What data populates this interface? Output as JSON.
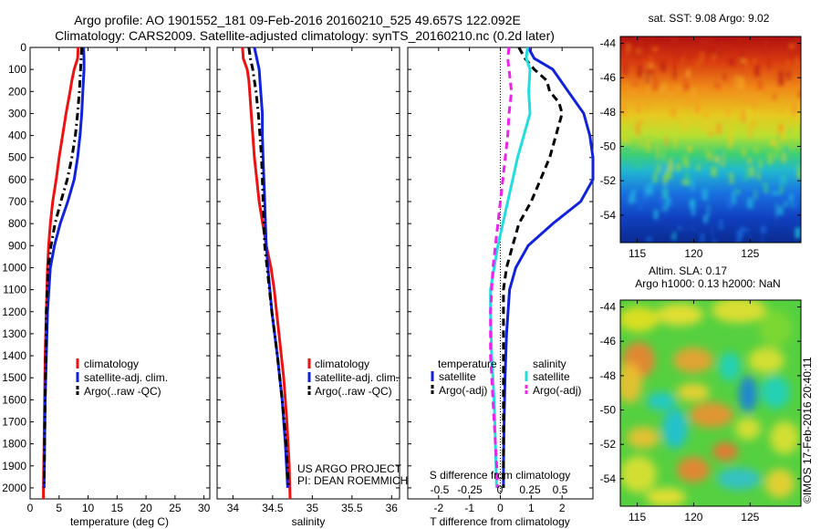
{
  "header": {
    "title_line1": "Argo profile: AO 1901552_181 09-Feb-2016 20160210_525 49.657S 122.092E",
    "title_line2": "Climatology: CARS2009. Satellite-adjusted climatology: synTS_20160210.nc (0.2d later)"
  },
  "y_ticks": [
    0,
    100,
    200,
    300,
    400,
    500,
    600,
    700,
    800,
    900,
    1000,
    1100,
    1200,
    1300,
    1400,
    1500,
    1600,
    1700,
    1800,
    1900,
    2000
  ],
  "colors": {
    "climatology": "#ee1111",
    "satellite": "#1122dd",
    "argo": "#000000",
    "s_satellite": "#22dddd",
    "s_argo": "#ee22ee"
  },
  "chart_data": [
    {
      "id": "temperature",
      "type": "line",
      "xlabel": "temperature (deg C)",
      "xlim": [
        0,
        31
      ],
      "ylim": [
        2050,
        0
      ],
      "xticks": [
        0,
        5,
        10,
        15,
        20,
        25,
        30
      ],
      "legend": {
        "placement": "bottom-left",
        "entries": [
          "climatology",
          "satellite-adj. clim.",
          "Argo(..raw -QC)"
        ]
      },
      "series": [
        {
          "name": "climatology",
          "color": "#ee1111",
          "style": "solid",
          "depth": [
            0,
            50,
            100,
            150,
            200,
            300,
            400,
            500,
            600,
            700,
            800,
            900,
            1000,
            1200,
            1400,
            1600,
            1800,
            2000,
            2050
          ],
          "values": [
            8.3,
            8.2,
            7.6,
            7.2,
            6.9,
            6.2,
            5.6,
            5.0,
            4.5,
            3.9,
            3.5,
            3.2,
            3.0,
            2.8,
            2.6,
            2.5,
            2.4,
            2.3,
            2.3
          ]
        },
        {
          "name": "satellite-adj. clim.",
          "color": "#1122dd",
          "style": "solid",
          "depth": [
            0,
            50,
            100,
            200,
            300,
            400,
            500,
            600,
            700,
            800,
            900,
            1000,
            1200,
            1400,
            1600,
            1800,
            2000
          ],
          "values": [
            9.2,
            9.3,
            9.3,
            9.1,
            8.9,
            8.6,
            8.2,
            7.6,
            6.5,
            5.2,
            4.2,
            3.5,
            3.0,
            2.8,
            2.6,
            2.5,
            2.4
          ]
        },
        {
          "name": "Argo(..raw -QC)",
          "color": "#000000",
          "style": "dashdot",
          "depth": [
            0,
            50,
            100,
            200,
            300,
            400,
            500,
            600,
            700,
            800,
            900,
            1000,
            1200,
            1400,
            1600,
            1800,
            2000
          ],
          "values": [
            8.9,
            8.8,
            8.7,
            8.5,
            8.2,
            7.8,
            7.2,
            6.4,
            5.3,
            4.3,
            3.6,
            3.1,
            2.8,
            2.7,
            2.6,
            2.5,
            2.4
          ]
        }
      ]
    },
    {
      "id": "salinity",
      "type": "line",
      "xlabel": "salinity",
      "xlim": [
        33.8,
        36.1
      ],
      "ylim": [
        2050,
        0
      ],
      "xticks": [
        34,
        34.5,
        35,
        35.5,
        36
      ],
      "legend": {
        "placement": "bottom-right",
        "entries": [
          "climatology",
          "satellite-adj. clim.",
          "Argo(..raw -QC)"
        ]
      },
      "series": [
        {
          "name": "climatology",
          "color": "#ee1111",
          "style": "solid",
          "depth": [
            0,
            50,
            100,
            150,
            200,
            300,
            500,
            700,
            900,
            1000,
            1100,
            1300,
            1500,
            1700,
            1900,
            2050
          ],
          "values": [
            34.12,
            34.13,
            34.18,
            34.2,
            34.21,
            34.23,
            34.27,
            34.33,
            34.42,
            34.48,
            34.52,
            34.58,
            34.64,
            34.68,
            34.71,
            34.72
          ]
        },
        {
          "name": "satellite-adj. clim.",
          "color": "#1122dd",
          "style": "solid",
          "depth": [
            0,
            50,
            100,
            200,
            300,
            400,
            500,
            600,
            700,
            800,
            900,
            1000,
            1200,
            1400,
            1600,
            1800,
            2000
          ],
          "values": [
            34.27,
            34.3,
            34.33,
            34.35,
            34.37,
            34.37,
            34.38,
            34.39,
            34.4,
            34.41,
            34.42,
            34.44,
            34.49,
            34.56,
            34.62,
            34.66,
            34.69
          ]
        },
        {
          "name": "Argo(..raw -QC)",
          "color": "#000000",
          "style": "dashdot",
          "depth": [
            0,
            50,
            100,
            200,
            300,
            400,
            500,
            600,
            700,
            800,
            900,
            1000,
            1200,
            1400,
            1600,
            1800,
            2000
          ],
          "values": [
            34.2,
            34.22,
            34.25,
            34.29,
            34.32,
            34.34,
            34.36,
            34.37,
            34.38,
            34.39,
            34.4,
            34.43,
            34.49,
            34.56,
            34.62,
            34.67,
            34.7
          ]
        }
      ],
      "annotations": [
        "US ARGO PROJECT",
        "PI: DEAN ROEMMICH"
      ]
    },
    {
      "id": "differences",
      "type": "line",
      "xlabel": "T difference from climatology",
      "xlabel_top": "S difference from climatology",
      "xlim": [
        -3.0,
        3.0
      ],
      "ylim": [
        2050,
        0
      ],
      "xticks": [
        -2,
        -1,
        0,
        1,
        2
      ],
      "s_ticks": [
        "-0.5",
        "-0.25",
        "0",
        "0.25",
        "0.5"
      ],
      "zero_line": "dotted",
      "legend": {
        "placement": "bottom",
        "headers": [
          "temperature",
          "salinity"
        ],
        "entries": [
          "satellite",
          "Argo(-adj)",
          "satellite",
          "Argo(-adj)"
        ]
      },
      "series": [
        {
          "name": "satellite",
          "group": "temperature",
          "color": "#1122dd",
          "style": "solid",
          "depth": [
            0,
            50,
            100,
            200,
            300,
            400,
            500,
            600,
            700,
            800,
            900,
            1000,
            1100,
            1300,
            1500,
            1700,
            1900,
            2000
          ],
          "values": [
            0.9,
            1.1,
            1.7,
            2.2,
            2.7,
            2.9,
            3.0,
            3.0,
            2.6,
            1.7,
            0.9,
            0.5,
            0.3,
            0.2,
            0.15,
            0.12,
            0.1,
            0.1
          ]
        },
        {
          "name": "Argo(-adj)",
          "group": "temperature",
          "color": "#000000",
          "style": "dashed",
          "depth": [
            0,
            50,
            100,
            150,
            200,
            250,
            300,
            400,
            500,
            600,
            700,
            800,
            900,
            1000,
            1100,
            1300,
            1500,
            1700,
            1900,
            2000
          ],
          "values": [
            0.6,
            0.8,
            1.1,
            1.5,
            1.6,
            1.9,
            2.0,
            1.8,
            1.6,
            1.3,
            1.0,
            0.6,
            0.4,
            0.2,
            0.1,
            0.1,
            0.1,
            0.1,
            0.1,
            0.1
          ]
        },
        {
          "name": "satellite",
          "group": "salinity",
          "color": "#22dddd",
          "style": "solid",
          "depth": [
            0,
            50,
            100,
            200,
            300,
            400,
            500,
            600,
            700,
            800,
            900,
            1000,
            1100,
            1200,
            1400,
            1600,
            1800,
            2000
          ],
          "values": [
            0.22,
            0.21,
            0.24,
            0.23,
            0.24,
            0.19,
            0.14,
            0.1,
            0.06,
            0.02,
            -0.02,
            -0.05,
            -0.08,
            -0.08,
            -0.07,
            -0.05,
            -0.04,
            -0.03
          ]
        },
        {
          "name": "Argo(-adj)",
          "group": "salinity",
          "color": "#ee22ee",
          "style": "dashed",
          "depth": [
            0,
            50,
            100,
            200,
            300,
            400,
            500,
            600,
            700,
            800,
            900,
            1000,
            1100,
            1200,
            1400,
            1600,
            1800,
            2000
          ],
          "values": [
            0.07,
            0.06,
            0.07,
            0.09,
            0.07,
            0.06,
            0.04,
            0.02,
            0.0,
            -0.02,
            -0.04,
            -0.06,
            -0.07,
            -0.08,
            -0.08,
            -0.06,
            -0.04,
            -0.02
          ]
        }
      ]
    },
    {
      "id": "sst-map",
      "type": "heatmap",
      "title": "sat. SST: 9.08  Argo: 9.02",
      "xlim": [
        113.5,
        129.5
      ],
      "ylim": [
        -55.6,
        -43.6
      ],
      "xticks": [
        115,
        120,
        125
      ],
      "yticks": [
        -44,
        -46,
        -48,
        -50,
        -52,
        -54
      ]
    },
    {
      "id": "sla-map",
      "type": "heatmap",
      "title_line1": "Altim. SLA: 0.17",
      "title_line2": "Argo h1000: 0.13  h2000: NaN",
      "xlim": [
        113.5,
        129.5
      ],
      "ylim": [
        -55.6,
        -43.6
      ],
      "xticks": [
        115,
        120,
        125
      ],
      "yticks": [
        -44,
        -46,
        -48,
        -50,
        -52,
        -54
      ]
    }
  ],
  "footer": {
    "credit": "©IMOS 17-Feb-2016 20:40:11"
  }
}
